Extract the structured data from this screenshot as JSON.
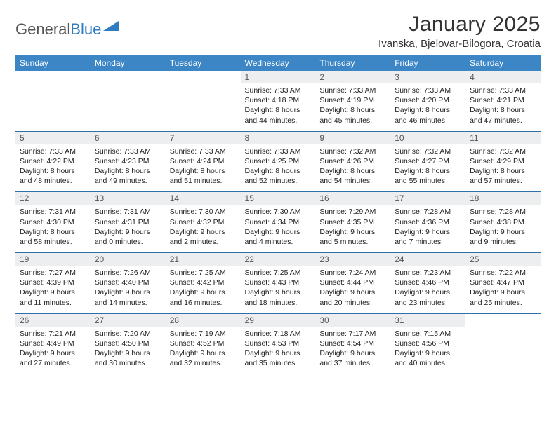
{
  "brand": {
    "part1": "General",
    "part2": "Blue"
  },
  "title": "January 2025",
  "location": "Ivanska, Bjelovar-Bilogora, Croatia",
  "colors": {
    "header_bg": "#3d86c6",
    "header_text": "#ffffff",
    "daynum_bg": "#eceef0",
    "border": "#2f6fa8",
    "brand_blue": "#2f7bbf"
  },
  "day_names": [
    "Sunday",
    "Monday",
    "Tuesday",
    "Wednesday",
    "Thursday",
    "Friday",
    "Saturday"
  ],
  "weeks": [
    [
      {
        "num": "",
        "sunrise": "",
        "sunset": "",
        "daylight1": "",
        "daylight2": ""
      },
      {
        "num": "",
        "sunrise": "",
        "sunset": "",
        "daylight1": "",
        "daylight2": ""
      },
      {
        "num": "",
        "sunrise": "",
        "sunset": "",
        "daylight1": "",
        "daylight2": ""
      },
      {
        "num": "1",
        "sunrise": "Sunrise: 7:33 AM",
        "sunset": "Sunset: 4:18 PM",
        "daylight1": "Daylight: 8 hours",
        "daylight2": "and 44 minutes."
      },
      {
        "num": "2",
        "sunrise": "Sunrise: 7:33 AM",
        "sunset": "Sunset: 4:19 PM",
        "daylight1": "Daylight: 8 hours",
        "daylight2": "and 45 minutes."
      },
      {
        "num": "3",
        "sunrise": "Sunrise: 7:33 AM",
        "sunset": "Sunset: 4:20 PM",
        "daylight1": "Daylight: 8 hours",
        "daylight2": "and 46 minutes."
      },
      {
        "num": "4",
        "sunrise": "Sunrise: 7:33 AM",
        "sunset": "Sunset: 4:21 PM",
        "daylight1": "Daylight: 8 hours",
        "daylight2": "and 47 minutes."
      }
    ],
    [
      {
        "num": "5",
        "sunrise": "Sunrise: 7:33 AM",
        "sunset": "Sunset: 4:22 PM",
        "daylight1": "Daylight: 8 hours",
        "daylight2": "and 48 minutes."
      },
      {
        "num": "6",
        "sunrise": "Sunrise: 7:33 AM",
        "sunset": "Sunset: 4:23 PM",
        "daylight1": "Daylight: 8 hours",
        "daylight2": "and 49 minutes."
      },
      {
        "num": "7",
        "sunrise": "Sunrise: 7:33 AM",
        "sunset": "Sunset: 4:24 PM",
        "daylight1": "Daylight: 8 hours",
        "daylight2": "and 51 minutes."
      },
      {
        "num": "8",
        "sunrise": "Sunrise: 7:33 AM",
        "sunset": "Sunset: 4:25 PM",
        "daylight1": "Daylight: 8 hours",
        "daylight2": "and 52 minutes."
      },
      {
        "num": "9",
        "sunrise": "Sunrise: 7:32 AM",
        "sunset": "Sunset: 4:26 PM",
        "daylight1": "Daylight: 8 hours",
        "daylight2": "and 54 minutes."
      },
      {
        "num": "10",
        "sunrise": "Sunrise: 7:32 AM",
        "sunset": "Sunset: 4:27 PM",
        "daylight1": "Daylight: 8 hours",
        "daylight2": "and 55 minutes."
      },
      {
        "num": "11",
        "sunrise": "Sunrise: 7:32 AM",
        "sunset": "Sunset: 4:29 PM",
        "daylight1": "Daylight: 8 hours",
        "daylight2": "and 57 minutes."
      }
    ],
    [
      {
        "num": "12",
        "sunrise": "Sunrise: 7:31 AM",
        "sunset": "Sunset: 4:30 PM",
        "daylight1": "Daylight: 8 hours",
        "daylight2": "and 58 minutes."
      },
      {
        "num": "13",
        "sunrise": "Sunrise: 7:31 AM",
        "sunset": "Sunset: 4:31 PM",
        "daylight1": "Daylight: 9 hours",
        "daylight2": "and 0 minutes."
      },
      {
        "num": "14",
        "sunrise": "Sunrise: 7:30 AM",
        "sunset": "Sunset: 4:32 PM",
        "daylight1": "Daylight: 9 hours",
        "daylight2": "and 2 minutes."
      },
      {
        "num": "15",
        "sunrise": "Sunrise: 7:30 AM",
        "sunset": "Sunset: 4:34 PM",
        "daylight1": "Daylight: 9 hours",
        "daylight2": "and 4 minutes."
      },
      {
        "num": "16",
        "sunrise": "Sunrise: 7:29 AM",
        "sunset": "Sunset: 4:35 PM",
        "daylight1": "Daylight: 9 hours",
        "daylight2": "and 5 minutes."
      },
      {
        "num": "17",
        "sunrise": "Sunrise: 7:28 AM",
        "sunset": "Sunset: 4:36 PM",
        "daylight1": "Daylight: 9 hours",
        "daylight2": "and 7 minutes."
      },
      {
        "num": "18",
        "sunrise": "Sunrise: 7:28 AM",
        "sunset": "Sunset: 4:38 PM",
        "daylight1": "Daylight: 9 hours",
        "daylight2": "and 9 minutes."
      }
    ],
    [
      {
        "num": "19",
        "sunrise": "Sunrise: 7:27 AM",
        "sunset": "Sunset: 4:39 PM",
        "daylight1": "Daylight: 9 hours",
        "daylight2": "and 11 minutes."
      },
      {
        "num": "20",
        "sunrise": "Sunrise: 7:26 AM",
        "sunset": "Sunset: 4:40 PM",
        "daylight1": "Daylight: 9 hours",
        "daylight2": "and 14 minutes."
      },
      {
        "num": "21",
        "sunrise": "Sunrise: 7:25 AM",
        "sunset": "Sunset: 4:42 PM",
        "daylight1": "Daylight: 9 hours",
        "daylight2": "and 16 minutes."
      },
      {
        "num": "22",
        "sunrise": "Sunrise: 7:25 AM",
        "sunset": "Sunset: 4:43 PM",
        "daylight1": "Daylight: 9 hours",
        "daylight2": "and 18 minutes."
      },
      {
        "num": "23",
        "sunrise": "Sunrise: 7:24 AM",
        "sunset": "Sunset: 4:44 PM",
        "daylight1": "Daylight: 9 hours",
        "daylight2": "and 20 minutes."
      },
      {
        "num": "24",
        "sunrise": "Sunrise: 7:23 AM",
        "sunset": "Sunset: 4:46 PM",
        "daylight1": "Daylight: 9 hours",
        "daylight2": "and 23 minutes."
      },
      {
        "num": "25",
        "sunrise": "Sunrise: 7:22 AM",
        "sunset": "Sunset: 4:47 PM",
        "daylight1": "Daylight: 9 hours",
        "daylight2": "and 25 minutes."
      }
    ],
    [
      {
        "num": "26",
        "sunrise": "Sunrise: 7:21 AM",
        "sunset": "Sunset: 4:49 PM",
        "daylight1": "Daylight: 9 hours",
        "daylight2": "and 27 minutes."
      },
      {
        "num": "27",
        "sunrise": "Sunrise: 7:20 AM",
        "sunset": "Sunset: 4:50 PM",
        "daylight1": "Daylight: 9 hours",
        "daylight2": "and 30 minutes."
      },
      {
        "num": "28",
        "sunrise": "Sunrise: 7:19 AM",
        "sunset": "Sunset: 4:52 PM",
        "daylight1": "Daylight: 9 hours",
        "daylight2": "and 32 minutes."
      },
      {
        "num": "29",
        "sunrise": "Sunrise: 7:18 AM",
        "sunset": "Sunset: 4:53 PM",
        "daylight1": "Daylight: 9 hours",
        "daylight2": "and 35 minutes."
      },
      {
        "num": "30",
        "sunrise": "Sunrise: 7:17 AM",
        "sunset": "Sunset: 4:54 PM",
        "daylight1": "Daylight: 9 hours",
        "daylight2": "and 37 minutes."
      },
      {
        "num": "31",
        "sunrise": "Sunrise: 7:15 AM",
        "sunset": "Sunset: 4:56 PM",
        "daylight1": "Daylight: 9 hours",
        "daylight2": "and 40 minutes."
      },
      {
        "num": "",
        "sunrise": "",
        "sunset": "",
        "daylight1": "",
        "daylight2": ""
      }
    ]
  ]
}
